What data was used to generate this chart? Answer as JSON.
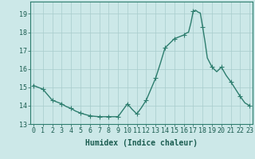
{
  "x": [
    0,
    0.5,
    1,
    1.5,
    2,
    2.5,
    3,
    3.5,
    4,
    4.5,
    5,
    5.5,
    6,
    6.5,
    7,
    7.5,
    8,
    8.5,
    9,
    9.5,
    10,
    10.5,
    11,
    11.5,
    12,
    12.5,
    13,
    13.5,
    14,
    14.5,
    15,
    15.5,
    16,
    16.25,
    16.5,
    16.75,
    17,
    17.25,
    17.5,
    17.75,
    18,
    18.25,
    18.5,
    19,
    19.5,
    20,
    20.5,
    21,
    21.5,
    22,
    22.5,
    23
  ],
  "y": [
    15.1,
    15.0,
    14.9,
    14.6,
    14.3,
    14.2,
    14.1,
    13.95,
    13.85,
    13.7,
    13.6,
    13.52,
    13.45,
    13.42,
    13.4,
    13.4,
    13.4,
    13.4,
    13.4,
    13.75,
    14.1,
    13.8,
    13.55,
    13.9,
    14.3,
    14.9,
    15.5,
    16.3,
    17.15,
    17.4,
    17.65,
    17.75,
    17.85,
    17.95,
    18.0,
    18.5,
    19.15,
    19.2,
    19.1,
    19.05,
    18.3,
    17.5,
    16.6,
    16.1,
    15.85,
    16.1,
    15.65,
    15.3,
    14.9,
    14.5,
    14.15,
    14.0
  ],
  "markers_x": [
    0,
    1,
    2,
    3,
    4,
    5,
    6,
    7,
    8,
    9,
    10,
    11,
    12,
    13,
    14,
    15,
    16,
    17,
    18,
    19,
    20,
    21,
    22,
    23
  ],
  "markers_y": [
    15.1,
    14.9,
    14.3,
    14.1,
    13.85,
    13.6,
    13.45,
    13.4,
    13.4,
    13.4,
    14.1,
    13.55,
    14.3,
    15.5,
    17.15,
    17.65,
    17.85,
    19.15,
    18.3,
    16.1,
    16.1,
    15.3,
    14.5,
    14.0
  ],
  "xlabel": "Humidex (Indice chaleur)",
  "ylim": [
    13.0,
    19.67
  ],
  "xlim": [
    -0.3,
    23.3
  ],
  "yticks": [
    13,
    14,
    15,
    16,
    17,
    18,
    19
  ],
  "xticks": [
    0,
    1,
    2,
    3,
    4,
    5,
    6,
    7,
    8,
    9,
    10,
    11,
    12,
    13,
    14,
    15,
    16,
    17,
    18,
    19,
    20,
    21,
    22,
    23
  ],
  "line_color": "#2d7d6e",
  "marker_color": "#2d7d6e",
  "bg_color": "#cce8e8",
  "grid_color": "#a8cccc",
  "axis_color": "#2d7d6e",
  "label_color": "#1a5c50",
  "xlabel_fontsize": 7,
  "tick_fontsize": 6,
  "linewidth": 1.0,
  "markersize": 2.0
}
